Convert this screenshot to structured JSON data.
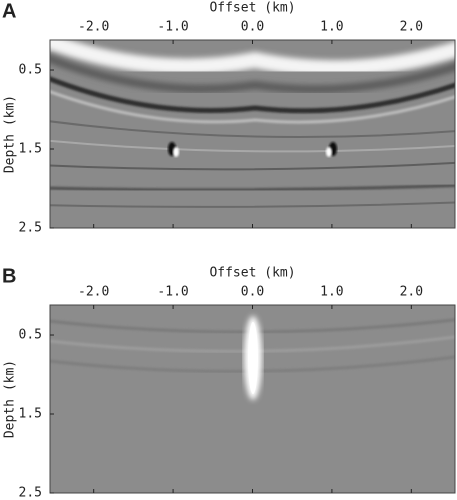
{
  "chart_data": [
    {
      "type": "image",
      "panel_label": "A",
      "xlabel": "Offset (km)",
      "ylabel": "Depth (km)",
      "xlim": [
        -2.55,
        2.55
      ],
      "ylim": [
        0.12,
        2.5
      ],
      "y_inverted": true,
      "xticks": [
        {
          "value": -2,
          "label": "-2.0"
        },
        {
          "value": -1,
          "label": "-1.0"
        },
        {
          "value": 0,
          "label": "0.0"
        },
        {
          "value": 1,
          "label": "1.0"
        },
        {
          "value": 2,
          "label": "2.0"
        }
      ],
      "yticks": [
        0.5,
        1.5,
        2.5
      ]
    },
    {
      "type": "image",
      "panel_label": "B",
      "xlabel": "Offset (km)",
      "ylabel": "Depth (km)",
      "xlim": [
        -2.55,
        2.55
      ],
      "ylim": [
        0.12,
        2.5
      ],
      "y_inverted": true,
      "xticks": [
        {
          "value": -2,
          "label": "-2.0"
        },
        {
          "value": -1,
          "label": "-1.0"
        },
        {
          "value": 0,
          "label": "0.0"
        },
        {
          "value": 1,
          "label": "1.0"
        },
        {
          "value": 2,
          "label": "2.0"
        }
      ],
      "yticks": [
        0.5,
        1.5,
        2.5
      ]
    }
  ]
}
